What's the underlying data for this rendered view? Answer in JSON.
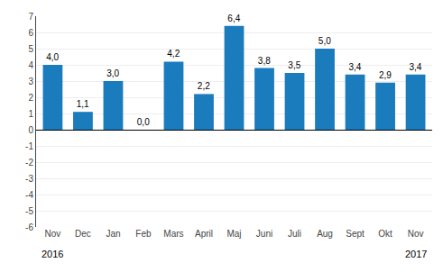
{
  "chart_data": {
    "type": "bar",
    "categories": [
      "Nov",
      "Dec",
      "Jan",
      "Feb",
      "Mars",
      "April",
      "Maj",
      "Juni",
      "Juli",
      "Aug",
      "Sept",
      "Okt",
      "Nov"
    ],
    "values": [
      4.0,
      1.1,
      3.0,
      0.0,
      4.2,
      2.2,
      6.4,
      3.8,
      3.5,
      5.0,
      3.4,
      2.9,
      3.4
    ],
    "value_labels": [
      "4,0",
      "1,1",
      "3,0",
      "0,0",
      "4,2",
      "2,2",
      "6,4",
      "3,8",
      "3,5",
      "5,0",
      "3,4",
      "2,9",
      "3,4"
    ],
    "data_labels": true,
    "color": "#1A7BBD",
    "ylim": [
      -6,
      7
    ],
    "yticks": [
      -6,
      -5,
      -4,
      -3,
      -2,
      -1,
      0,
      1,
      2,
      3,
      4,
      5,
      6,
      7
    ],
    "grid": true,
    "annotations": [
      {
        "text": "2016",
        "x": 0
      },
      {
        "text": "2017",
        "x": 12
      }
    ]
  }
}
